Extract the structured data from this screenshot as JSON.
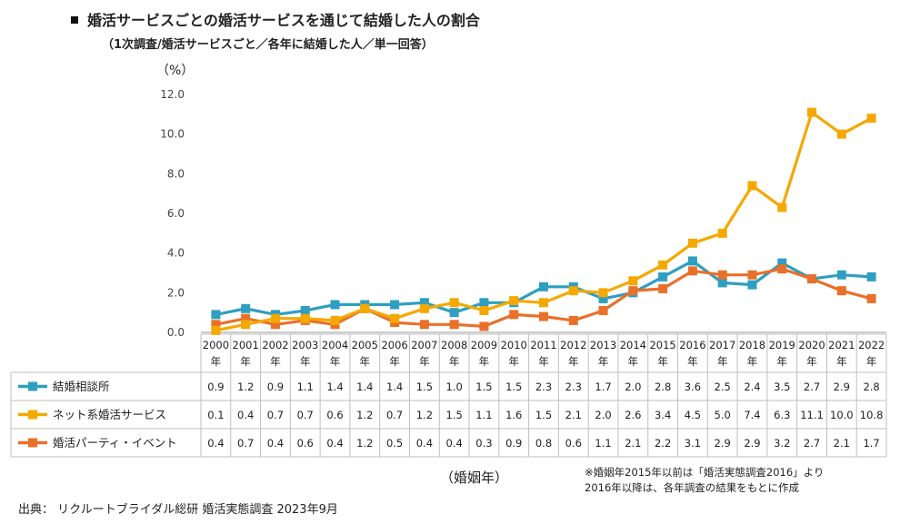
{
  "header": {
    "title": "婚活サービスごとの婚活サービスを通じて結婚した人の割合",
    "subtitle": "（1次調査/婚活サービスごと／各年に結婚した人／単一回答）",
    "y_unit": "（%）"
  },
  "footer": {
    "xlabel": "（婚姻年）",
    "note_line1": "※婚姻年2015年以前は「婚活実態調査2016」より",
    "note_line2": "2016年以降は、各年調査の結果をもとに作成",
    "source": "出典：  リクルートブライダル総研   婚活実態調査   2023年9月"
  },
  "chart_data": {
    "type": "line",
    "year_suffix": "年",
    "categories": [
      "2000",
      "2001",
      "2002",
      "2003",
      "2004",
      "2005",
      "2006",
      "2007",
      "2008",
      "2009",
      "2010",
      "2011",
      "2012",
      "2013",
      "2014",
      "2015",
      "2016",
      "2017",
      "2018",
      "2019",
      "2020",
      "2021",
      "2022"
    ],
    "ylim": [
      0,
      12
    ],
    "yticks": [
      "0.0",
      "2.0",
      "4.0",
      "6.0",
      "8.0",
      "10.0",
      "12.0"
    ],
    "grid": false,
    "legend": "data-table-rows",
    "series": [
      {
        "name": "結婚相談所",
        "color": "#2E9FC1",
        "values": [
          0.9,
          1.2,
          0.9,
          1.1,
          1.4,
          1.4,
          1.4,
          1.5,
          1.0,
          1.5,
          1.5,
          2.3,
          2.3,
          1.7,
          2.0,
          2.8,
          3.6,
          2.5,
          2.4,
          3.5,
          2.7,
          2.9,
          2.8
        ]
      },
      {
        "name": "ネット系婚活サービス",
        "color": "#F5A800",
        "values": [
          0.1,
          0.4,
          0.7,
          0.7,
          0.6,
          1.2,
          0.7,
          1.2,
          1.5,
          1.1,
          1.6,
          1.5,
          2.1,
          2.0,
          2.6,
          3.4,
          4.5,
          5.0,
          7.4,
          6.3,
          11.1,
          10.0,
          10.8
        ]
      },
      {
        "name": "婚活パーティ・イベント",
        "color": "#E9702A",
        "values": [
          0.4,
          0.7,
          0.4,
          0.6,
          0.4,
          1.2,
          0.5,
          0.4,
          0.4,
          0.3,
          0.9,
          0.8,
          0.6,
          1.1,
          2.1,
          2.2,
          3.1,
          2.9,
          2.9,
          3.2,
          2.7,
          2.1,
          1.7
        ]
      }
    ]
  }
}
